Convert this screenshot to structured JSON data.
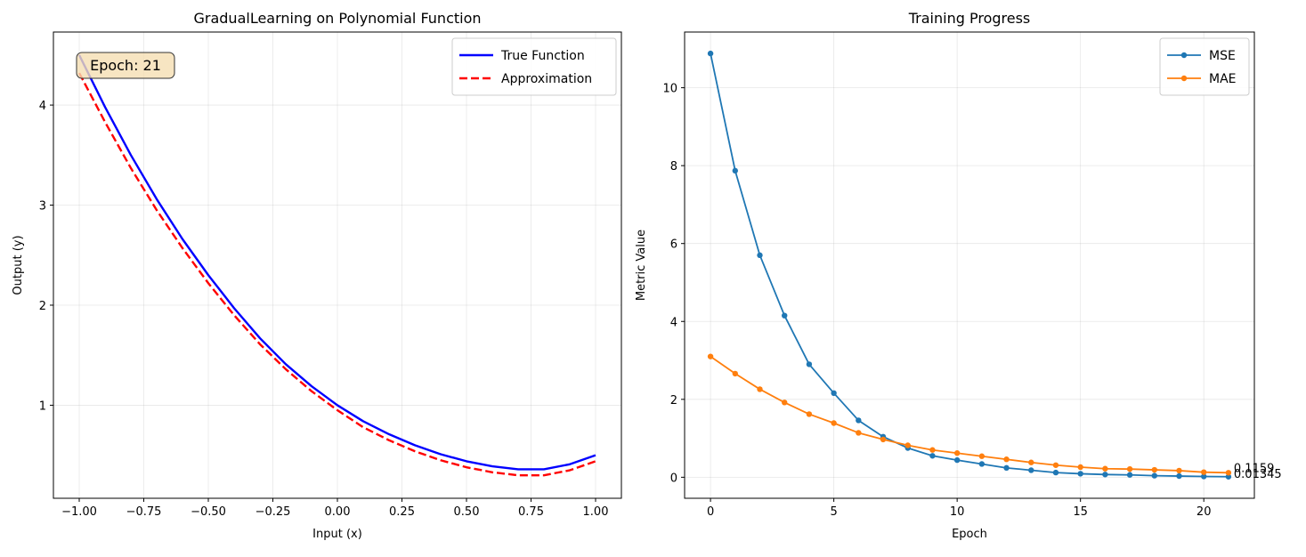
{
  "chart_data": [
    {
      "type": "line",
      "title": "GradualLearning on Polynomial Function",
      "xlabel": "Input (x)",
      "ylabel": "Output (y)",
      "xlim": [
        -1.1,
        1.1
      ],
      "ylim": [
        0.07,
        4.73
      ],
      "xticks": [
        -1.0,
        -0.75,
        -0.5,
        -0.25,
        0.0,
        0.25,
        0.5,
        0.75,
        1.0
      ],
      "xtick_labels": [
        "−1.00",
        "−0.75",
        "−0.50",
        "−0.25",
        "0.00",
        "0.25",
        "0.50",
        "0.75",
        "1.00"
      ],
      "yticks": [
        1,
        2,
        3,
        4
      ],
      "ytick_labels": [
        "1",
        "2",
        "3",
        "4"
      ],
      "grid": true,
      "legend": "top-right",
      "annotation": "Epoch: 21",
      "series": [
        {
          "name": "True Function",
          "color": "#0000ff",
          "style": "solid",
          "x": [
            -1.0,
            -0.9,
            -0.8,
            -0.7,
            -0.6,
            -0.5,
            -0.4,
            -0.3,
            -0.2,
            -0.1,
            0.0,
            0.1,
            0.2,
            0.3,
            0.4,
            0.5,
            0.6,
            0.7,
            0.8,
            0.9,
            1.0
          ],
          "y": [
            4.5,
            3.98,
            3.5,
            3.06,
            2.66,
            2.3,
            1.97,
            1.67,
            1.41,
            1.19,
            1.0,
            0.84,
            0.71,
            0.6,
            0.51,
            0.44,
            0.39,
            0.36,
            0.36,
            0.41,
            0.5
          ]
        },
        {
          "name": "Approximation",
          "color": "#ff0000",
          "style": "dashed",
          "x": [
            -1.0,
            -0.9,
            -0.8,
            -0.7,
            -0.6,
            -0.5,
            -0.4,
            -0.3,
            -0.2,
            -0.1,
            0.0,
            0.1,
            0.2,
            0.3,
            0.4,
            0.5,
            0.6,
            0.7,
            0.8,
            0.9,
            1.0
          ],
          "y": [
            4.32,
            3.83,
            3.37,
            2.95,
            2.57,
            2.22,
            1.9,
            1.61,
            1.36,
            1.14,
            0.95,
            0.78,
            0.65,
            0.54,
            0.45,
            0.38,
            0.33,
            0.3,
            0.3,
            0.35,
            0.44
          ]
        }
      ]
    },
    {
      "type": "line",
      "title": "Training Progress",
      "xlabel": "Epoch",
      "ylabel": "Metric Value",
      "xlim": [
        -1.05,
        22.05
      ],
      "ylim": [
        -0.54,
        11.43
      ],
      "xticks": [
        0,
        5,
        10,
        15,
        20
      ],
      "xtick_labels": [
        "0",
        "5",
        "10",
        "15",
        "20"
      ],
      "yticks": [
        0,
        2,
        4,
        6,
        8,
        10
      ],
      "ytick_labels": [
        "0",
        "2",
        "4",
        "6",
        "8",
        "10"
      ],
      "grid": true,
      "legend": "top-right",
      "end_labels": [
        "0.1159",
        "0.01345"
      ],
      "series": [
        {
          "name": "MSE",
          "color": "#1f77b4",
          "marker": "circle",
          "x": [
            0,
            1,
            2,
            3,
            4,
            5,
            6,
            7,
            8,
            9,
            10,
            11,
            12,
            13,
            14,
            15,
            16,
            17,
            18,
            19,
            20,
            21
          ],
          "y": [
            10.88,
            7.87,
            5.7,
            4.15,
            2.9,
            2.16,
            1.46,
            1.04,
            0.75,
            0.55,
            0.44,
            0.34,
            0.24,
            0.18,
            0.12,
            0.09,
            0.07,
            0.06,
            0.04,
            0.03,
            0.02,
            0.01345
          ]
        },
        {
          "name": "MAE",
          "color": "#ff7f0e",
          "marker": "circle",
          "x": [
            0,
            1,
            2,
            3,
            4,
            5,
            6,
            7,
            8,
            9,
            10,
            11,
            12,
            13,
            14,
            15,
            16,
            17,
            18,
            19,
            20,
            21
          ],
          "y": [
            3.1,
            2.66,
            2.26,
            1.92,
            1.62,
            1.39,
            1.14,
            0.97,
            0.82,
            0.7,
            0.62,
            0.54,
            0.46,
            0.38,
            0.31,
            0.26,
            0.22,
            0.21,
            0.19,
            0.17,
            0.13,
            0.1159
          ]
        }
      ]
    }
  ]
}
